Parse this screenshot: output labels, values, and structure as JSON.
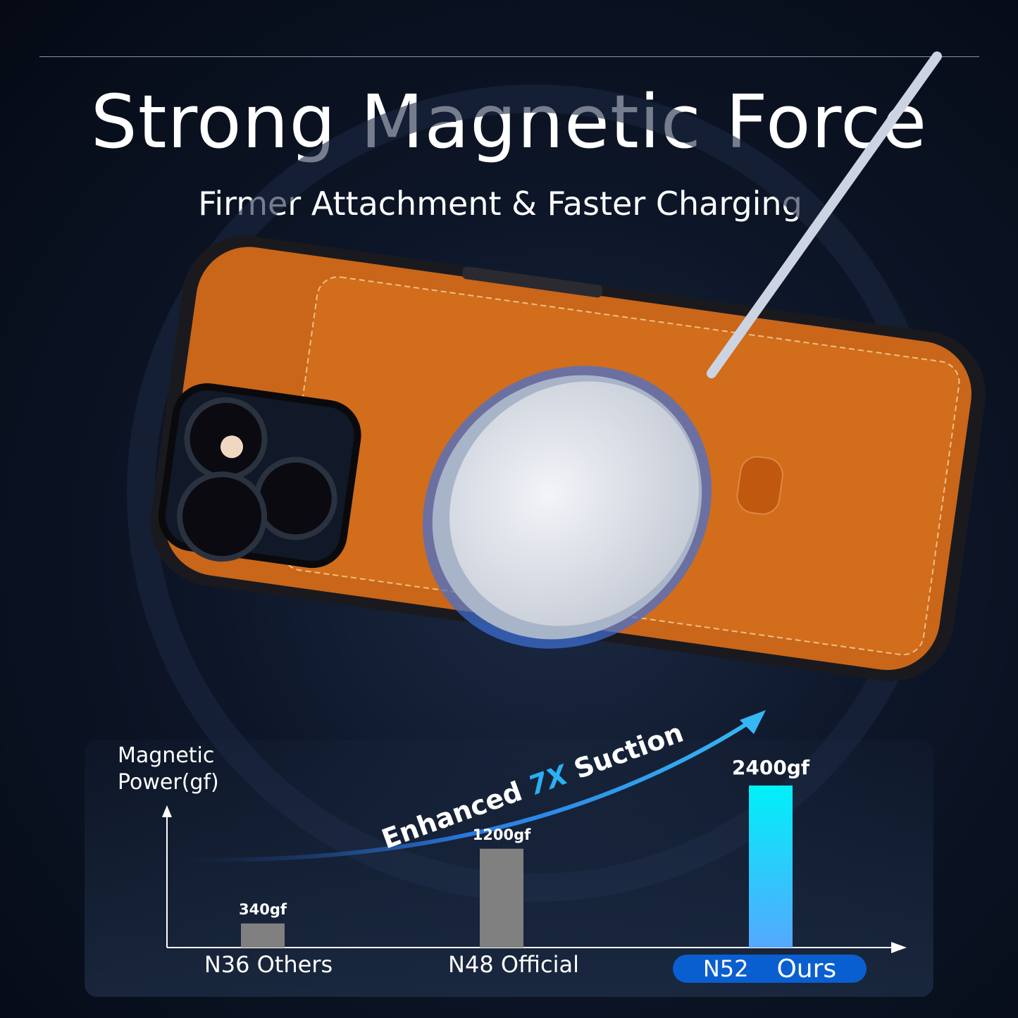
{
  "header": {
    "title": "Strong Magnetic Force",
    "subtitle": "Firmer Attachment & Faster Charging"
  },
  "chart": {
    "ylabel_line1": "Magnetic",
    "ylabel_line2": "Power(gf)",
    "arrow_text_1": "Enhanced ",
    "arrow_text_2": "7X",
    "arrow_text_3": " Suction"
  },
  "chart_data": {
    "type": "bar",
    "ylabel": "Magnetic Power(gf)",
    "categories": [
      "N36 Others",
      "N48 Official",
      "N52 Ours"
    ],
    "values": [
      340,
      1200,
      2400
    ],
    "data_labels": [
      "340gf",
      "1200gf",
      "2400gf"
    ],
    "colors": [
      "#808080",
      "#808080",
      "#1ee6f5"
    ],
    "highlight_category": {
      "grade": "N52",
      "label": "Ours",
      "color": "#0a5fd0"
    }
  },
  "colors": {
    "case": "#c9661a",
    "accent": "#2aa8f0"
  }
}
